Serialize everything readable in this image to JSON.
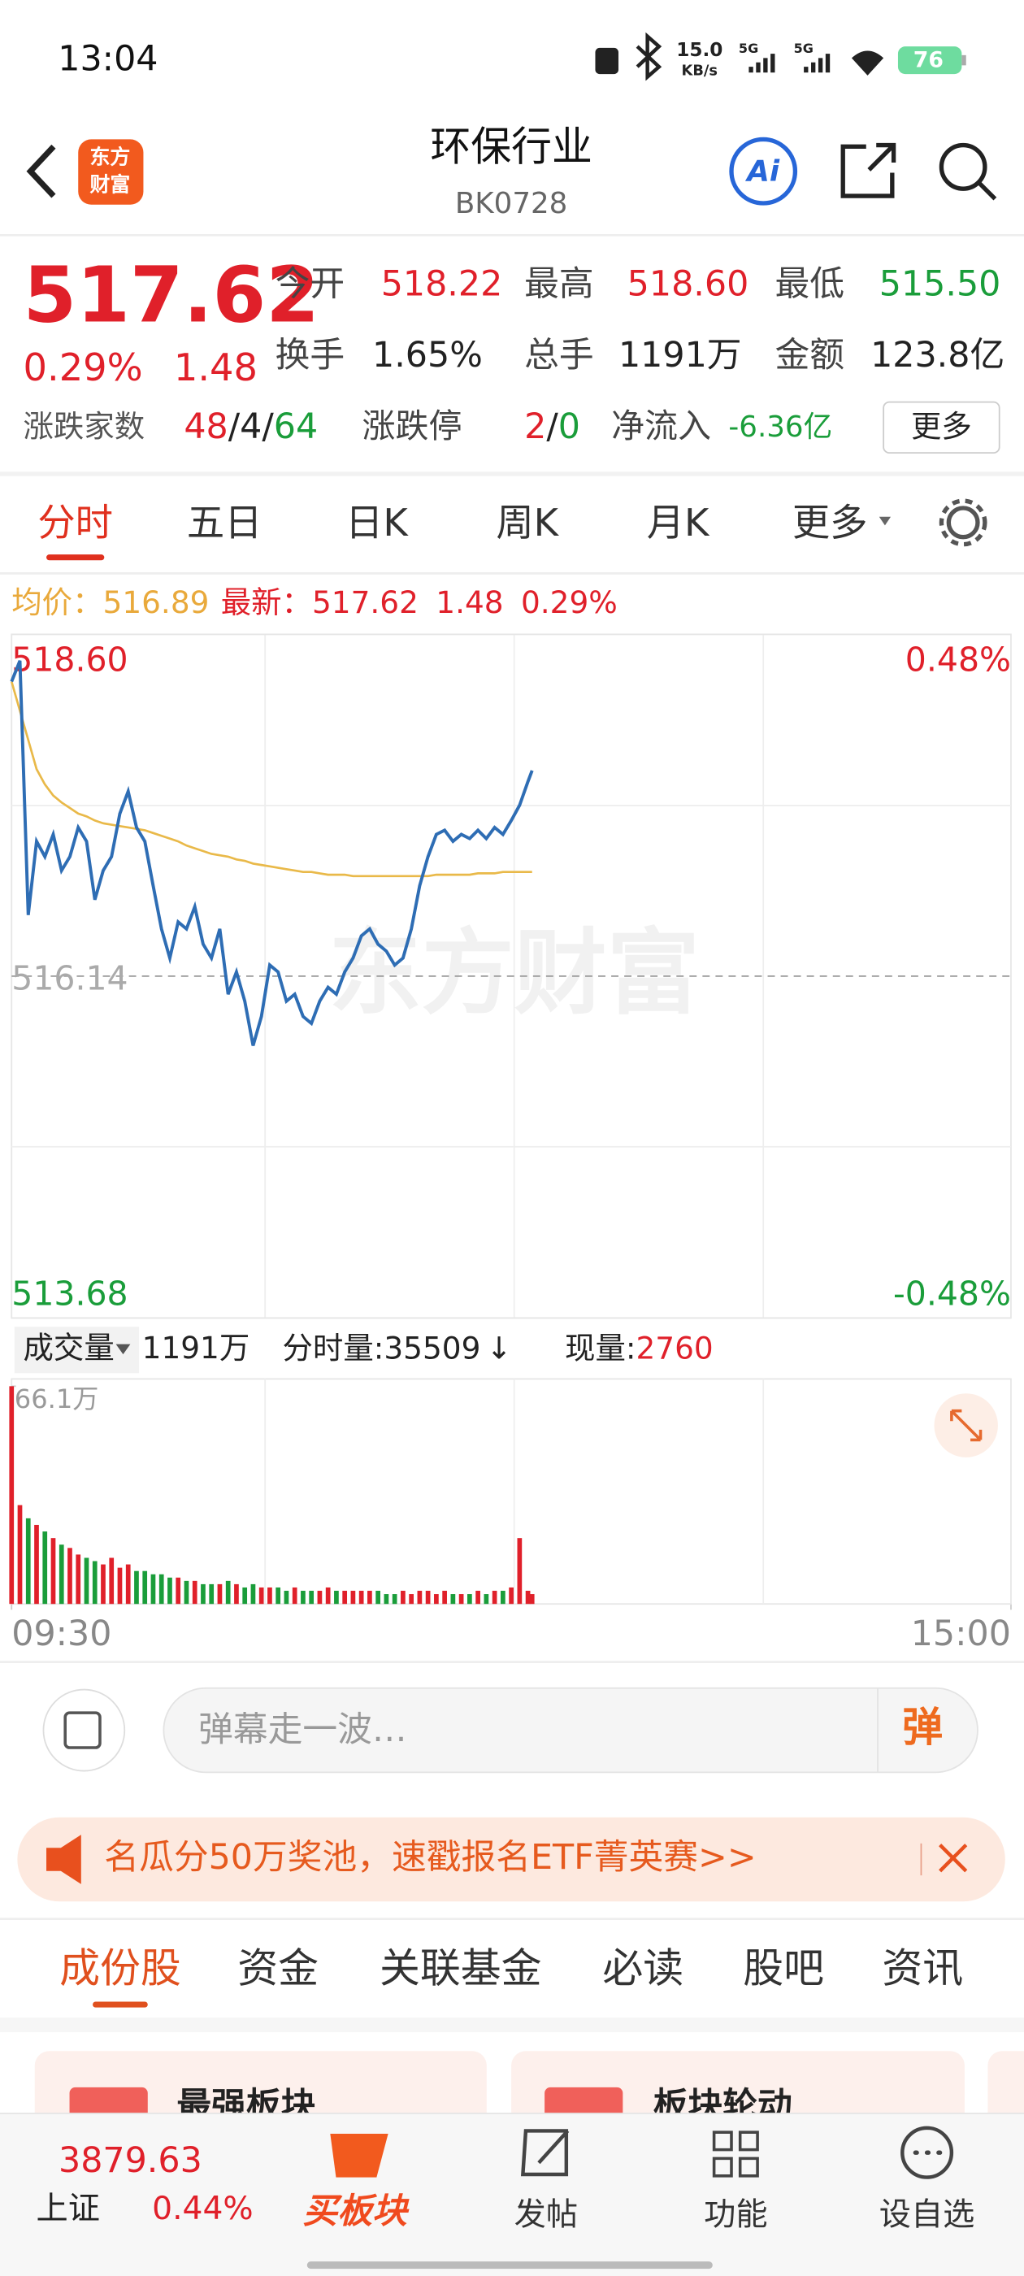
{
  "status_bar": {
    "time": "13:04",
    "speed": "15.0",
    "speed_unit": "KB/s",
    "net1": "5G",
    "net2": "5G",
    "battery": "76"
  },
  "header": {
    "logo_top": "东方",
    "logo_bottom": "财富",
    "title": "环保行业",
    "code": "BK0728",
    "ai": "Ai"
  },
  "quote": {
    "price": "517.62",
    "change_pct": "0.29%",
    "change": "1.48",
    "fields": [
      {
        "label": "今开",
        "value": "518.22"
      },
      {
        "label": "最高",
        "value": "518.60"
      },
      {
        "label": "最低",
        "value": "515.50"
      },
      {
        "label": "换手",
        "value": "1.65%"
      },
      {
        "label": "总手",
        "value": "1191万"
      },
      {
        "label": "金额",
        "value": "123.8亿"
      }
    ],
    "breadth_label": "涨跌家数",
    "breadth": [
      "48",
      "/",
      "4",
      "/",
      "64"
    ],
    "limit_label": "涨跌停",
    "limit": [
      "2",
      "/",
      "0"
    ],
    "inflow_label": "净流入",
    "inflow": "-6.36亿",
    "more": "更多"
  },
  "tabs": [
    "分时",
    "五日",
    "日K",
    "周K",
    "月K",
    "更多"
  ],
  "info_line": {
    "avg": "516.89",
    "latest": "517.62",
    "change": "1.48",
    "change_pct": "0.29%"
  },
  "watermark": "东方财富",
  "chart_data": [
    {
      "type": "line",
      "x": [
        0,
        2,
        4,
        6,
        8,
        10,
        12,
        14,
        16,
        18,
        20,
        22,
        24,
        26,
        28,
        30,
        32,
        34,
        36,
        38,
        40,
        42,
        44,
        46,
        48,
        50,
        52,
        54,
        56,
        58,
        60,
        62,
        64,
        66,
        68,
        70,
        72,
        74,
        76,
        78,
        80,
        82,
        84,
        86,
        88,
        90,
        92,
        94,
        96,
        98,
        100,
        102,
        104,
        106,
        108,
        110,
        112,
        114,
        116,
        118,
        120,
        122,
        124,
        125
      ],
      "xlim": [
        0,
        240
      ],
      "xticks": [
        {
          "value": 0,
          "label": "09:30"
        },
        {
          "value": 240,
          "label": "15:00"
        }
      ],
      "ylim": [
        513.68,
        518.6
      ],
      "yticks": [
        {
          "value": 518.6,
          "label": "518.60"
        },
        516.14,
        513.68
      ],
      "y2lim": [
        -0.48,
        0.48
      ],
      "y2ticks": [
        {
          "value": 0.48,
          "label": "0.48%"
        },
        {
          "value": -0.48,
          "label": "-0.48%"
        }
      ],
      "series": [
        {
          "name": "均价：",
          "color": "#e9b949",
          "values": [
            518.26,
            518.05,
            517.84,
            517.63,
            517.52,
            517.44,
            517.39,
            517.35,
            517.31,
            517.29,
            517.26,
            517.24,
            517.23,
            517.22,
            517.21,
            517.2,
            517.19,
            517.17,
            517.15,
            517.13,
            517.11,
            517.08,
            517.06,
            517.04,
            517.02,
            517.01,
            517.0,
            516.98,
            516.97,
            516.95,
            516.94,
            516.93,
            516.92,
            516.91,
            516.9,
            516.89,
            516.89,
            516.88,
            516.87,
            516.87,
            516.87,
            516.86,
            516.86,
            516.86,
            516.86,
            516.86,
            516.86,
            516.86,
            516.86,
            516.86,
            516.86,
            516.87,
            516.87,
            516.87,
            516.87,
            516.87,
            516.88,
            516.88,
            516.88,
            516.89,
            516.89,
            516.89,
            516.89,
            516.89
          ]
        },
        {
          "name": "最新：",
          "color": "#2e6db4",
          "values": [
            518.26,
            518.41,
            516.58,
            517.11,
            517.0,
            517.16,
            516.9,
            517.0,
            517.21,
            517.11,
            516.69,
            516.9,
            517.0,
            517.31,
            517.47,
            517.21,
            517.11,
            516.79,
            516.48,
            516.27,
            516.53,
            516.48,
            516.64,
            516.37,
            516.27,
            516.48,
            516.01,
            516.17,
            515.96,
            515.64,
            515.85,
            516.22,
            516.17,
            515.96,
            516.01,
            515.85,
            515.8,
            515.96,
            516.06,
            516.01,
            516.17,
            516.27,
            516.43,
            516.48,
            516.37,
            516.32,
            516.22,
            516.27,
            516.48,
            516.79,
            517.0,
            517.16,
            517.19,
            517.11,
            517.16,
            517.13,
            517.19,
            517.13,
            517.21,
            517.16,
            517.26,
            517.37,
            517.54,
            517.62
          ]
        }
      ]
    },
    {
      "type": "bar",
      "x": [
        0,
        2,
        4,
        6,
        8,
        10,
        12,
        14,
        16,
        18,
        20,
        22,
        24,
        26,
        28,
        30,
        32,
        34,
        36,
        38,
        40,
        42,
        44,
        46,
        48,
        50,
        52,
        54,
        56,
        58,
        60,
        62,
        64,
        66,
        68,
        70,
        72,
        74,
        76,
        78,
        80,
        82,
        84,
        86,
        88,
        90,
        92,
        94,
        96,
        98,
        100,
        102,
        104,
        106,
        108,
        110,
        112,
        114,
        116,
        118,
        120,
        122,
        124,
        125
      ],
      "xlim": [
        0,
        240
      ],
      "ylim": [
        0,
        66.1
      ],
      "yticks": [
        {
          "value": 66.1,
          "label": "66.1万"
        }
      ],
      "colors": {
        "up": "#e0202a",
        "down": "#1a9d3a"
      },
      "values": [
        66.1,
        30,
        26,
        24,
        22,
        20,
        18,
        17,
        15,
        14,
        13,
        12,
        14,
        11,
        12,
        10,
        10,
        9,
        9,
        8,
        8,
        7,
        7,
        6,
        6,
        6,
        7,
        6,
        5,
        6,
        5,
        5,
        5,
        4,
        5,
        4,
        4,
        4,
        5,
        4,
        4,
        4,
        4,
        4,
        4,
        3,
        3,
        4,
        3,
        4,
        4,
        3,
        4,
        3,
        3,
        3,
        4,
        3,
        4,
        4,
        5,
        20,
        4,
        3
      ]
    }
  ],
  "volume_bar": {
    "label": "成交量",
    "total": "1191万",
    "minute_label": "分时量:",
    "minute": "35509",
    "arrow": "↓",
    "now_label": "现量:",
    "now": "2760"
  },
  "comment": {
    "placeholder": "弹幕走一波…",
    "button": "弹"
  },
  "banner": {
    "text": "名瓜分50万奖池，速戳报名ETF菁英赛>>"
  },
  "sub_tabs": [
    "成份股",
    "资金",
    "关联基金",
    "必读",
    "股吧",
    "资讯"
  ],
  "cards": [
    "最强板块",
    "板块轮动"
  ],
  "bottom_bar": {
    "index_value": "3879.63",
    "index_name": "上证",
    "index_change": "0.44%",
    "buttons": [
      "买板块",
      "发帖",
      "功能",
      "设自选"
    ]
  }
}
